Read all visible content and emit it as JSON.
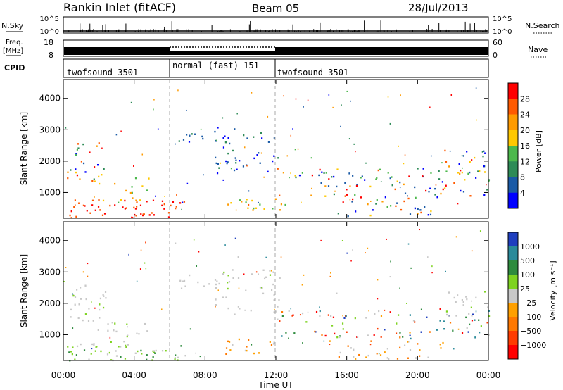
{
  "header": {
    "title": "Rankin Inlet (fitACF)",
    "beam": "Beam 05",
    "date": "28/Jul/2013"
  },
  "nsky_panel": {
    "left_label": "N.Sky",
    "left_ticks": [
      "10^5",
      "10^0"
    ],
    "right_label": "N.Search",
    "right_ticks": [
      "10^5",
      "10^0"
    ]
  },
  "freq_panel": {
    "left_label_1": "Freq.",
    "left_label_2": "[MHz]",
    "left_ticks": [
      "18",
      "8"
    ],
    "right_label": "Nave",
    "right_ticks": [
      "60",
      "0"
    ]
  },
  "cpid": {
    "label": "CPID",
    "segments": [
      {
        "label": "twofsound 3501",
        "start_hour": 0,
        "end_hour": 6
      },
      {
        "label": "normal (fast) 151",
        "start_hour": 6,
        "end_hour": 12
      },
      {
        "label": "twofsound 3501",
        "start_hour": 12,
        "end_hour": 24
      }
    ]
  },
  "chart_data": [
    {
      "type": "heatmap",
      "name": "power",
      "ylabel": "Slant Range [km]",
      "y_ticks": [
        "1000",
        "2000",
        "3000",
        "4000"
      ],
      "ylim": [
        180,
        4600
      ],
      "xlim_hours": [
        0,
        24
      ],
      "colorbar": {
        "label": "Power [dB]",
        "ticks": [
          "28",
          "24",
          "20",
          "16",
          "12",
          "8",
          "4"
        ],
        "colors": [
          "#ff0000",
          "#ff5a00",
          "#ff9b00",
          "#ffc800",
          "#4cb84c",
          "#2e8b57",
          "#1a5aa6",
          "#0000ff"
        ]
      }
    },
    {
      "type": "heatmap",
      "name": "velocity",
      "ylabel": "Slant Range [km]",
      "y_ticks": [
        "1000",
        "2000",
        "3000",
        "4000"
      ],
      "ylim": [
        180,
        4600
      ],
      "xlim_hours": [
        0,
        24
      ],
      "colorbar": {
        "label": "Velocity [m s⁻¹]",
        "ticks": [
          "1000",
          "500",
          "100",
          "25",
          "−25",
          "−100",
          "−500",
          "−1000"
        ],
        "colors": [
          "#1f3fbf",
          "#2a8a9a",
          "#2e8b3e",
          "#7ed321",
          "#c8c8c8",
          "#ffa000",
          "#ff7800",
          "#ff3c00",
          "#ff0000"
        ]
      }
    }
  ],
  "x_axis": {
    "tick_labels": [
      "00:00",
      "04:00",
      "08:00",
      "12:00",
      "16:00",
      "20:00",
      "00:00"
    ],
    "label": "Time UT"
  }
}
